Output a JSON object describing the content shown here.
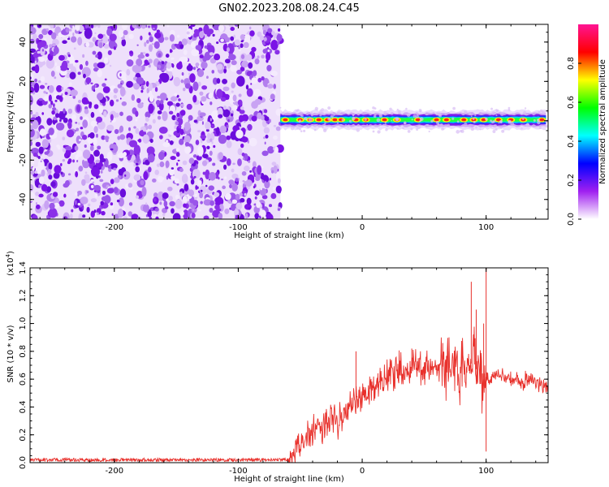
{
  "figure_title": "GN02.2023.208.08.24.C45",
  "chart_data": [
    {
      "type": "heatmap",
      "title": "",
      "xlabel": "Height of straight line (km)",
      "ylabel": "Frequency (Hz)",
      "xlim": [
        -268,
        150
      ],
      "ylim": [
        -50,
        49
      ],
      "x_ticks": [
        -200,
        -100,
        0,
        100
      ],
      "x_tick_labels": [
        "-200",
        "-100",
        "0",
        "100"
      ],
      "y_ticks": [
        -40,
        -20,
        0,
        20,
        40
      ],
      "y_tick_labels": [
        "-40",
        "-20",
        "0",
        "20",
        "40"
      ],
      "noise_region_x": [
        -268,
        -66
      ],
      "signal_region_x": [
        -66,
        150
      ],
      "signal_frequency_hz": 0.5,
      "signal_peaks_x": [
        -62,
        -50,
        -42,
        -35,
        -28,
        -22,
        -17,
        -5,
        3,
        18,
        28,
        45,
        60,
        68,
        82,
        90,
        98,
        110,
        120,
        130,
        145
      ],
      "colorbar": {
        "label": "Normalized spectral amplitude",
        "range": [
          0,
          1
        ],
        "ticks": [
          0,
          0.2,
          0.4,
          0.6,
          0.8
        ],
        "tick_labels": [
          "0.0",
          "0.2",
          "0.4",
          "0.6",
          "0.8"
        ],
        "colors": [
          "#ffffff",
          "#a020f0",
          "#0000ff",
          "#00ffff",
          "#00ff00",
          "#ffff00",
          "#ff0000",
          "#ff1493"
        ]
      }
    },
    {
      "type": "line",
      "title": "",
      "xlabel": "Height of straight line (km)",
      "ylabel": "SNR (10 * v/v)",
      "y_scale_label": "(x10",
      "y_scale_exponent": "4",
      "y_scale_suffix": ")",
      "xlim": [
        -268,
        150
      ],
      "ylim": [
        0,
        1.4
      ],
      "x_ticks": [
        -200,
        -100,
        0,
        100
      ],
      "x_tick_labels": [
        "-200",
        "-100",
        "0",
        "100"
      ],
      "y_ticks": [
        0,
        0.2,
        0.4,
        0.6,
        0.8,
        1.0,
        1.2,
        1.4
      ],
      "y_tick_labels": [
        "0.0",
        "0.2",
        "0.4",
        "0.6",
        "0.8",
        "1.0",
        "1.2",
        "1.4"
      ],
      "series": [
        {
          "color": "#e8302b",
          "x": [
            -268,
            -60,
            -52,
            -45,
            -40,
            -35,
            -30,
            -25,
            -20,
            -15,
            -10,
            -5,
            0,
            5,
            10,
            15,
            20,
            25,
            30,
            35,
            40,
            45,
            50,
            55,
            60,
            65,
            70,
            75,
            80,
            85,
            90,
            95,
            100,
            105,
            110,
            115,
            120,
            125,
            130,
            135,
            140,
            145,
            150
          ],
          "y": [
            0.02,
            0.02,
            0.1,
            0.18,
            0.22,
            0.26,
            0.25,
            0.3,
            0.28,
            0.36,
            0.42,
            0.45,
            0.48,
            0.52,
            0.55,
            0.58,
            0.62,
            0.65,
            0.67,
            0.66,
            0.7,
            0.7,
            0.68,
            0.69,
            0.7,
            0.69,
            0.68,
            0.67,
            0.62,
            0.7,
            0.72,
            0.6,
            0.62,
            0.6,
            0.64,
            0.62,
            0.6,
            0.6,
            0.58,
            0.62,
            0.57,
            0.55,
            0.55
          ],
          "spikes": [
            {
              "x": -5,
              "y": 0.8
            },
            {
              "x": 40,
              "y": 0.82
            },
            {
              "x": 65,
              "y": 0.86
            },
            {
              "x": 70,
              "y": 0.8
            },
            {
              "x": 88,
              "y": 1.3
            },
            {
              "x": 92,
              "y": 1.1
            },
            {
              "x": 98,
              "y": 1.0
            },
            {
              "x": 100,
              "y": 1.41
            },
            {
              "x": 100,
              "y": 0.08
            }
          ]
        }
      ]
    }
  ]
}
